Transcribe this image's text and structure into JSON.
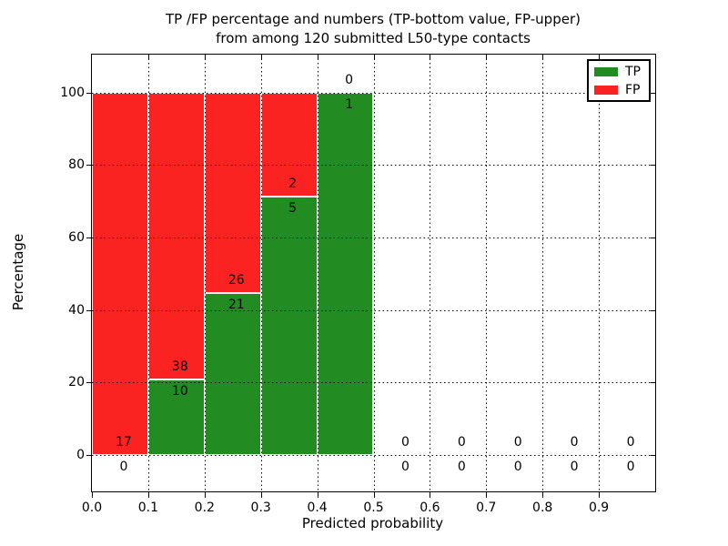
{
  "chart_data": {
    "type": "bar",
    "stacked": true,
    "percent_normalized": true,
    "title_line1": "TP /FP percentage and numbers (TP-bottom value, FP-upper)",
    "title_line2": "from among 120 submitted L50-type contacts",
    "xlabel": "Predicted probability",
    "ylabel": "Percentage",
    "xlim": [
      0.0,
      1.0
    ],
    "ylim": [
      -10,
      110.5
    ],
    "grid": "dotted",
    "legend_position": "upper right",
    "colors": {
      "tp": "#228b22",
      "fp": "#fb2222"
    },
    "legend": [
      {
        "label": "TP",
        "color": "#228b22"
      },
      {
        "label": "FP",
        "color": "#fb2222"
      }
    ],
    "xticks": [
      {
        "label": "0.0",
        "value": 0.0
      },
      {
        "label": "0.1",
        "value": 0.1
      },
      {
        "label": "0.2",
        "value": 0.2
      },
      {
        "label": "0.3",
        "value": 0.3
      },
      {
        "label": "0.4",
        "value": 0.4
      },
      {
        "label": "0.5",
        "value": 0.5
      },
      {
        "label": "0.6",
        "value": 0.6
      },
      {
        "label": "0.7",
        "value": 0.7
      },
      {
        "label": "0.8",
        "value": 0.8
      },
      {
        "label": "0.9",
        "value": 0.9
      }
    ],
    "yticks": [
      {
        "label": "0",
        "value": 0
      },
      {
        "label": "20",
        "value": 20
      },
      {
        "label": "40",
        "value": 40
      },
      {
        "label": "60",
        "value": 60
      },
      {
        "label": "80",
        "value": 80
      },
      {
        "label": "100",
        "value": 100
      }
    ],
    "bins": [
      {
        "x0": 0.0,
        "x1": 0.1,
        "tp": 0,
        "fp": 17,
        "tp_pct": 0,
        "fp_pct": 100
      },
      {
        "x0": 0.1,
        "x1": 0.2,
        "tp": 10,
        "fp": 38,
        "tp_pct": 20.833,
        "fp_pct": 79.167
      },
      {
        "x0": 0.2,
        "x1": 0.3,
        "tp": 21,
        "fp": 26,
        "tp_pct": 44.681,
        "fp_pct": 55.319
      },
      {
        "x0": 0.3,
        "x1": 0.4,
        "tp": 5,
        "fp": 2,
        "tp_pct": 71.429,
        "fp_pct": 28.571
      },
      {
        "x0": 0.4,
        "x1": 0.5,
        "tp": 1,
        "fp": 0,
        "tp_pct": 100,
        "fp_pct": 0
      },
      {
        "x0": 0.5,
        "x1": 0.6,
        "tp": 0,
        "fp": 0,
        "tp_pct": 0,
        "fp_pct": 0
      },
      {
        "x0": 0.6,
        "x1": 0.7,
        "tp": 0,
        "fp": 0,
        "tp_pct": 0,
        "fp_pct": 0
      },
      {
        "x0": 0.7,
        "x1": 0.8,
        "tp": 0,
        "fp": 0,
        "tp_pct": 0,
        "fp_pct": 0
      },
      {
        "x0": 0.8,
        "x1": 0.9,
        "tp": 0,
        "fp": 0,
        "tp_pct": 0,
        "fp_pct": 0
      },
      {
        "x0": 0.9,
        "x1": 1.0,
        "tp": 0,
        "fp": 0,
        "tp_pct": 0,
        "fp_pct": 0
      }
    ]
  }
}
